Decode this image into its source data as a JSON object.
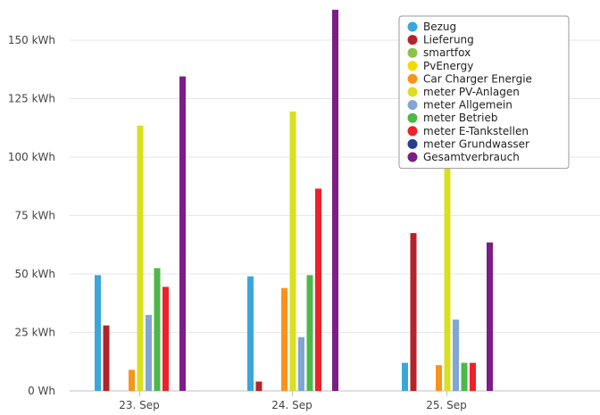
{
  "chart_data": {
    "type": "bar",
    "categories": [
      "23. Sep",
      "24. Sep",
      "25. Sep"
    ],
    "y_unit": "kWh",
    "y_ticks": [
      "0 Wh",
      "25 kWh",
      "50 kWh",
      "75 kWh",
      "100 kWh",
      "125 kWh",
      "150 kWh"
    ],
    "ylim": [
      0,
      165
    ],
    "grid": true,
    "legend_position": "top-right",
    "series": [
      {
        "name": "Bezug",
        "color": "#3aa7dc",
        "values": [
          49.5,
          49,
          12
        ]
      },
      {
        "name": "Lieferung",
        "color": "#b5232a",
        "values": [
          28,
          4,
          67.5
        ]
      },
      {
        "name": "smartfox",
        "color": "#8bc34a",
        "values": [
          0,
          0,
          0
        ]
      },
      {
        "name": "PvEnergy",
        "color": "#f5d800",
        "values": [
          0,
          0,
          0
        ]
      },
      {
        "name": "Car Charger Energie",
        "color": "#f7941d",
        "values": [
          9,
          44,
          11
        ]
      },
      {
        "name": "meter PV-Anlagen",
        "color": "#d9e021",
        "values": [
          113.5,
          119.5,
          101
        ]
      },
      {
        "name": "meter Allgemein",
        "color": "#7fa6d4",
        "values": [
          32.5,
          23,
          30.5
        ]
      },
      {
        "name": "meter Betrieb",
        "color": "#4cb848",
        "values": [
          52.5,
          49.5,
          12
        ]
      },
      {
        "name": "meter E-Tankstellen",
        "color": "#ee2129",
        "values": [
          44.5,
          86.5,
          12
        ]
      },
      {
        "name": "meter Grundwasser",
        "color": "#283c8f",
        "values": [
          0,
          0,
          0
        ]
      },
      {
        "name": "Gesamtverbrauch",
        "color": "#7d1d86",
        "values": [
          134.5,
          163,
          63.5
        ]
      }
    ]
  }
}
